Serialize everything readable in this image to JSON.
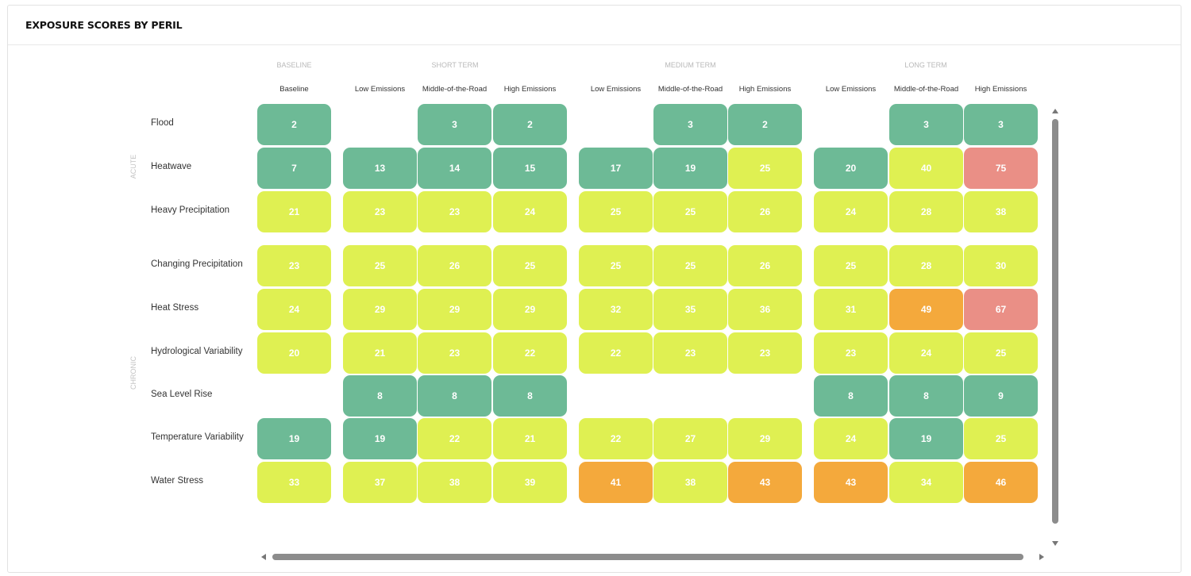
{
  "panel": {
    "title": "EXPOSURE SCORES BY PERIL"
  },
  "colors": {
    "green": "#6dba96",
    "yellow": "#dff052",
    "orange": "#f4a93c",
    "red": "#ea8f86"
  },
  "chart_data": {
    "type": "heatmap",
    "title": "EXPOSURE SCORES BY PERIL",
    "periods": [
      "BASELINE",
      "SHORT TERM",
      "MEDIUM TERM",
      "LONG TERM"
    ],
    "columns": [
      {
        "period": "BASELINE",
        "scenario": "Baseline"
      },
      {
        "period": "SHORT TERM",
        "scenario": "Low Emissions"
      },
      {
        "period": "SHORT TERM",
        "scenario": "Middle-of-the-Road"
      },
      {
        "period": "SHORT TERM",
        "scenario": "High Emissions"
      },
      {
        "period": "MEDIUM TERM",
        "scenario": "Low Emissions"
      },
      {
        "period": "MEDIUM TERM",
        "scenario": "Middle-of-the-Road"
      },
      {
        "period": "MEDIUM TERM",
        "scenario": "High Emissions"
      },
      {
        "period": "LONG TERM",
        "scenario": "Low Emissions"
      },
      {
        "period": "LONG TERM",
        "scenario": "Middle-of-the-Road"
      },
      {
        "period": "LONG TERM",
        "scenario": "High Emissions"
      }
    ],
    "groups": [
      {
        "name": "ACUTE",
        "rows": [
          "Flood",
          "Heatwave",
          "Heavy Precipitation"
        ]
      },
      {
        "name": "CHRONIC",
        "rows": [
          "Changing Precipitation",
          "Heat Stress",
          "Hydrological Variability",
          "Sea Level Rise",
          "Temperature Variability",
          "Water Stress"
        ]
      }
    ],
    "rows": [
      {
        "name": "Flood",
        "values": [
          2,
          null,
          3,
          2,
          null,
          3,
          2,
          null,
          3,
          3
        ],
        "colors": [
          "green",
          null,
          "green",
          "green",
          null,
          "green",
          "green",
          null,
          "green",
          "green"
        ]
      },
      {
        "name": "Heatwave",
        "values": [
          7,
          13,
          14,
          15,
          17,
          19,
          25,
          20,
          40,
          75
        ],
        "colors": [
          "green",
          "green",
          "green",
          "green",
          "green",
          "green",
          "yellow",
          "green",
          "yellow",
          "red"
        ]
      },
      {
        "name": "Heavy Precipitation",
        "values": [
          21,
          23,
          23,
          24,
          25,
          25,
          26,
          24,
          28,
          38
        ],
        "colors": [
          "yellow",
          "yellow",
          "yellow",
          "yellow",
          "yellow",
          "yellow",
          "yellow",
          "yellow",
          "yellow",
          "yellow"
        ]
      },
      {
        "name": "Changing Precipitation",
        "values": [
          23,
          25,
          26,
          25,
          25,
          25,
          26,
          25,
          28,
          30
        ],
        "colors": [
          "yellow",
          "yellow",
          "yellow",
          "yellow",
          "yellow",
          "yellow",
          "yellow",
          "yellow",
          "yellow",
          "yellow"
        ]
      },
      {
        "name": "Heat Stress",
        "values": [
          24,
          29,
          29,
          29,
          32,
          35,
          36,
          31,
          49,
          67
        ],
        "colors": [
          "yellow",
          "yellow",
          "yellow",
          "yellow",
          "yellow",
          "yellow",
          "yellow",
          "yellow",
          "orange",
          "red"
        ]
      },
      {
        "name": "Hydrological Variability",
        "values": [
          20,
          21,
          23,
          22,
          22,
          23,
          23,
          23,
          24,
          25
        ],
        "colors": [
          "yellow",
          "yellow",
          "yellow",
          "yellow",
          "yellow",
          "yellow",
          "yellow",
          "yellow",
          "yellow",
          "yellow"
        ]
      },
      {
        "name": "Sea Level Rise",
        "values": [
          null,
          8,
          8,
          8,
          null,
          null,
          null,
          8,
          8,
          9
        ],
        "colors": [
          null,
          "green",
          "green",
          "green",
          null,
          null,
          null,
          "green",
          "green",
          "green"
        ]
      },
      {
        "name": "Temperature Variability",
        "values": [
          19,
          19,
          22,
          21,
          22,
          27,
          29,
          24,
          19,
          25
        ],
        "colors": [
          "green",
          "green",
          "yellow",
          "yellow",
          "yellow",
          "yellow",
          "yellow",
          "yellow",
          "green",
          "yellow"
        ]
      },
      {
        "name": "Water Stress",
        "values": [
          33,
          37,
          38,
          39,
          41,
          38,
          43,
          43,
          34,
          46
        ],
        "colors": [
          "yellow",
          "yellow",
          "yellow",
          "yellow",
          "orange",
          "yellow",
          "orange",
          "orange",
          "yellow",
          "orange"
        ]
      }
    ]
  }
}
